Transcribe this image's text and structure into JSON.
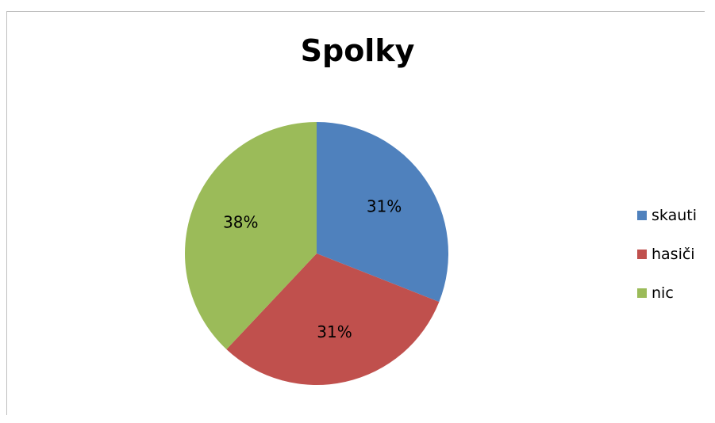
{
  "chart_data": {
    "type": "pie",
    "title": "Spolky",
    "categories": [
      "skauti",
      "hasiči",
      "nic"
    ],
    "values": [
      31,
      31,
      38
    ],
    "labels": [
      "31%",
      "31%",
      "38%"
    ],
    "colors": [
      "#4f81bd",
      "#c0504d",
      "#9bbb59"
    ],
    "legend_position": "right"
  }
}
